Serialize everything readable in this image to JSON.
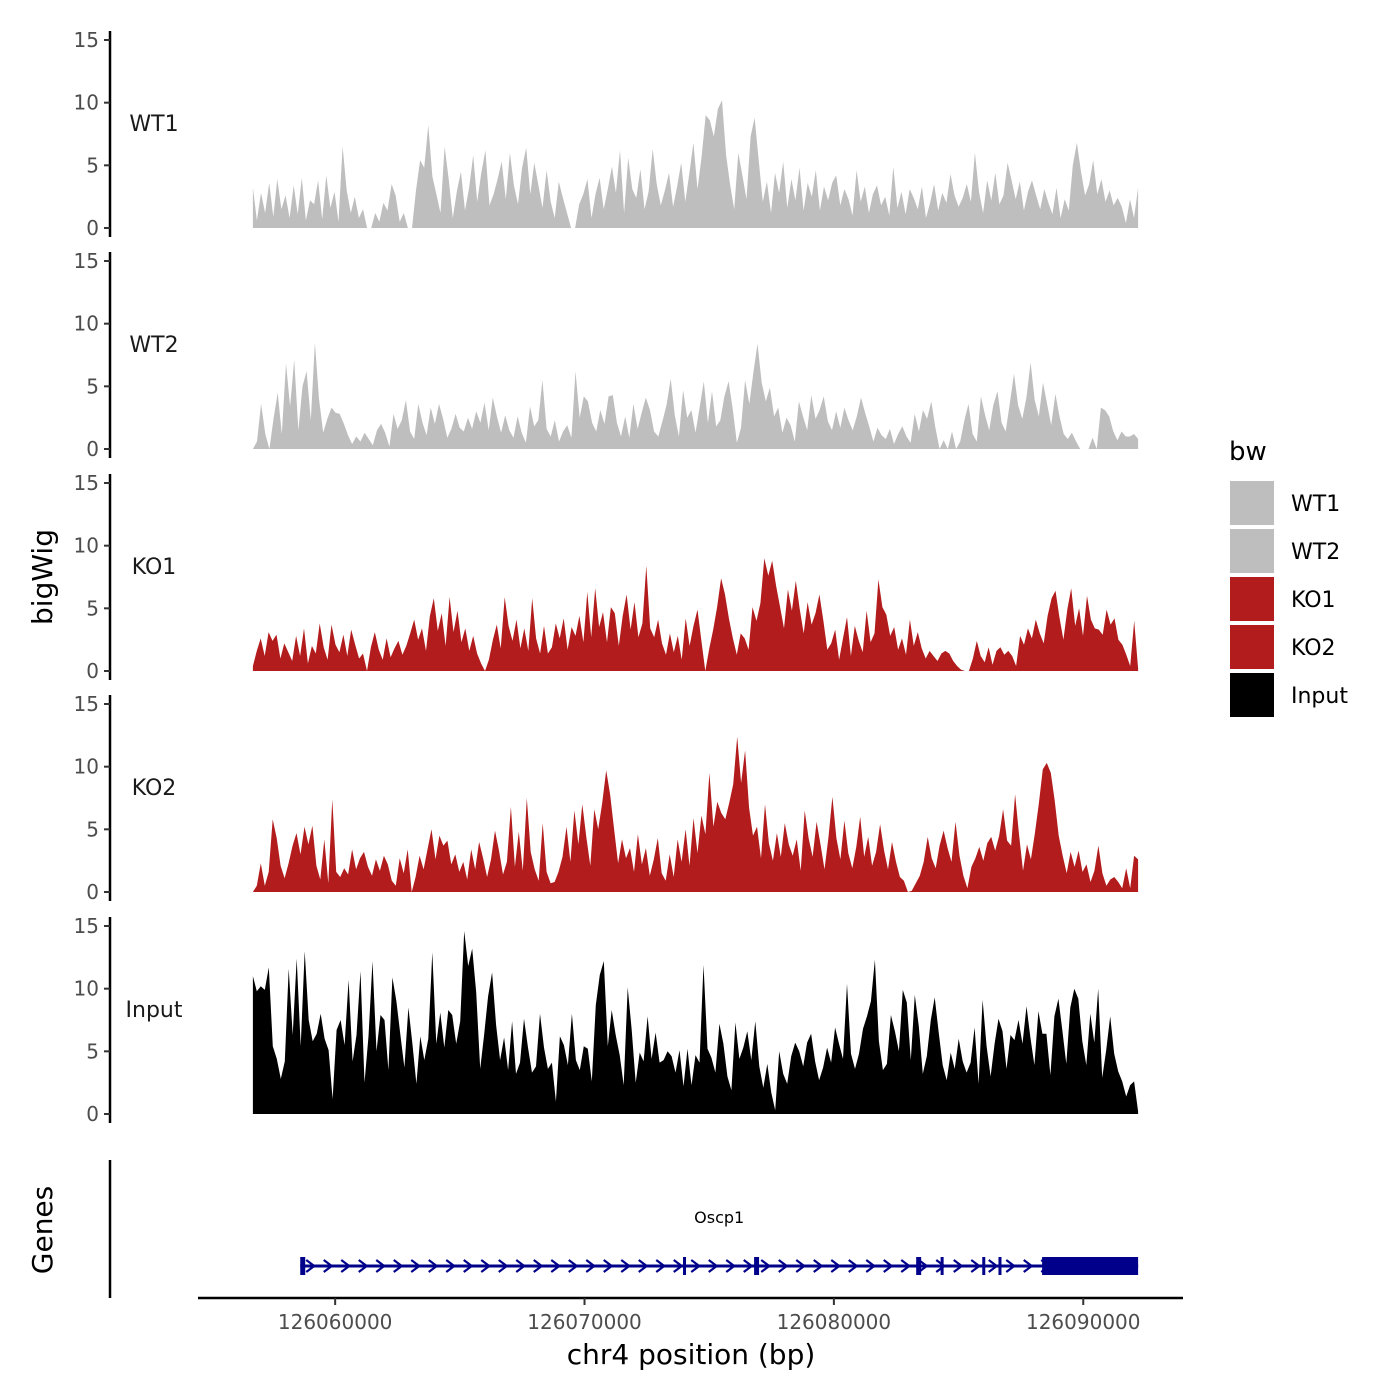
{
  "chart_data": {
    "type": "area",
    "region": {
      "chromosome": "chr4",
      "start": 126056700,
      "end": 126092200
    },
    "xlabel": "chr4 position (bp)",
    "ylabel": "bigWig",
    "xlim": [
      126054500,
      126094000
    ],
    "ylim": [
      0,
      15
    ],
    "x_ticks": [
      126060000,
      126070000,
      126080000,
      126090000
    ],
    "x_tick_labels": [
      "126060000",
      "126070000",
      "126080000",
      "126090000"
    ],
    "y_ticks": [
      0,
      5,
      10,
      15
    ],
    "y_tick_labels": [
      "0",
      "5",
      "10",
      "15"
    ],
    "legend": {
      "title": "bw",
      "position": "right",
      "entries": [
        {
          "label": "WT1",
          "color": "#bebebe"
        },
        {
          "label": "WT2",
          "color": "#bebebe"
        },
        {
          "label": "KO1",
          "color": "#b21c1c"
        },
        {
          "label": "KO2",
          "color": "#b21c1c"
        },
        {
          "label": "Input",
          "color": "#000000"
        }
      ]
    },
    "series": [
      {
        "name": "WT1",
        "color": "#bebebe",
        "x_start": 126056700,
        "x_end": 126092200,
        "values": [
          3.2,
          0.6,
          2.8,
          1.2,
          3.6,
          0.9,
          3.9,
          1.5,
          2.6,
          0.8,
          3.4,
          1.1,
          4.0,
          0.6,
          2.2,
          1.9,
          3.8,
          0.7,
          4.2,
          1.6,
          2.9,
          0.5,
          6.5,
          3.0,
          1.2,
          2.5,
          0.8,
          1.5,
          0,
          0,
          1.2,
          0.5,
          2.0,
          1.4,
          3.5,
          2.6,
          0.5,
          1.2,
          0,
          0,
          3.0,
          5.4,
          4.8,
          8.2,
          4.1,
          2.7,
          1.2,
          6.5,
          3.9,
          0.8,
          2.9,
          4.5,
          1.4,
          3.2,
          5.8,
          2.1,
          4.4,
          6.2,
          1.8,
          2.7,
          3.9,
          5.3,
          2.3,
          6.0,
          3.4,
          1.9,
          4.8,
          6.4,
          2.7,
          5.2,
          3.4,
          1.6,
          4.6,
          2.1,
          0.8,
          3.7,
          2.4,
          1.2,
          0,
          0,
          1.9,
          2.7,
          3.9,
          0.8,
          2.7,
          4.0,
          1.5,
          3.1,
          4.9,
          2.8,
          6.2,
          1.2,
          5.6,
          3.1,
          2.4,
          4.7,
          1.5,
          2.9,
          6.3,
          3.5,
          1.8,
          3.0,
          4.4,
          1.7,
          3.3,
          5.2,
          2.1,
          4.4,
          6.8,
          3.1,
          5.7,
          9.0,
          8.6,
          7.3,
          9.5,
          10.2,
          5.8,
          3.4,
          1.5,
          6.0,
          4.2,
          2.3,
          7.3,
          8.8,
          5.4,
          2.1,
          3.7,
          1.2,
          4.4,
          2.8,
          5.3,
          1.6,
          3.9,
          2.2,
          4.8,
          1.4,
          3.6,
          2.5,
          4.6,
          1.4,
          3.3,
          2.2,
          3.6,
          4.2,
          1.8,
          3.1,
          2.3,
          1.0,
          4.6,
          2.1,
          3.3,
          1.2,
          2.7,
          3.4,
          1.8,
          2.5,
          1.0,
          4.9,
          1.6,
          2.9,
          1.1,
          3.1,
          2.4,
          1.5,
          3.3,
          0.8,
          2.0,
          3.5,
          1.4,
          2.8,
          2.0,
          4.3,
          2.6,
          1.7,
          2.4,
          3.5,
          2.1,
          6.0,
          2.9,
          1.2,
          3.8,
          2.2,
          4.4,
          1.9,
          2.6,
          5.2,
          3.8,
          2.3,
          3.7,
          1.4,
          2.9,
          3.8,
          2.6,
          1.5,
          3.1,
          2.0,
          1.1,
          3.2,
          0.8,
          2.3,
          1.4,
          5.0,
          6.8,
          4.5,
          2.6,
          3.5,
          5.4,
          2.7,
          3.9,
          2.1,
          3.0,
          1.8,
          2.4,
          1.7,
          0.4,
          2.3,
          0.8,
          3.2
        ]
      },
      {
        "name": "WT2",
        "color": "#bebebe",
        "x_start": 126056700,
        "x_end": 126092200,
        "values": [
          0,
          0.6,
          3.6,
          1.2,
          0,
          2.4,
          4.5,
          1.2,
          6.8,
          3.4,
          7.1,
          1.5,
          5.0,
          6.2,
          2.3,
          8.5,
          4.0,
          1.3,
          2.4,
          3.3,
          2.9,
          2.8,
          2.0,
          1.1,
          0.4,
          1.0,
          0.6,
          1.3,
          0.8,
          0.3,
          1.5,
          2.0,
          1.3,
          0.2,
          2.8,
          1.6,
          2.3,
          3.9,
          1.4,
          0.8,
          3.6,
          2.1,
          1.1,
          3.3,
          2.0,
          3.6,
          2.4,
          0.9,
          1.6,
          2.8,
          1.7,
          1.4,
          2.5,
          1.6,
          3.0,
          2.1,
          3.7,
          1.5,
          4.1,
          2.6,
          1.3,
          2.7,
          1.5,
          0.9,
          2.6,
          1.3,
          0.5,
          3.4,
          1.8,
          2.3,
          5.5,
          1.6,
          1.0,
          2.3,
          0.6,
          1.4,
          1.9,
          0.9,
          6.2,
          2.5,
          4.2,
          3.8,
          2.1,
          1.4,
          3.1,
          2.0,
          4.2,
          4.3,
          2.1,
          1.0,
          2.6,
          0.9,
          3.6,
          1.6,
          2.9,
          4.1,
          3.1,
          1.4,
          1.0,
          2.2,
          3.5,
          5.6,
          2.7,
          1.0,
          4.7,
          2.5,
          3.1,
          1.3,
          3.3,
          5.4,
          2.1,
          4.6,
          1.8,
          2.3,
          4.2,
          5.4,
          3.2,
          0.5,
          1.7,
          5.5,
          3.6,
          6.1,
          8.4,
          5.3,
          3.8,
          4.9,
          2.6,
          3.3,
          1.3,
          2.5,
          1.9,
          0.6,
          3.8,
          2.6,
          1.5,
          4.3,
          2.4,
          3.1,
          4.2,
          2.2,
          1.5,
          3.0,
          1.7,
          3.3,
          2.3,
          1.5,
          2.6,
          4.1,
          2.9,
          1.8,
          0.6,
          1.7,
          1.1,
          0.8,
          1.6,
          0.4,
          1.2,
          1.8,
          1.0,
          0.5,
          2.8,
          1.4,
          3.1,
          2.4,
          3.8,
          1.7,
          0,
          0.7,
          0,
          1.4,
          0,
          0.6,
          2.3,
          3.6,
          1.2,
          0.6,
          4.2,
          2.7,
          1.5,
          3.5,
          4.6,
          2.1,
          1.4,
          3.7,
          6.0,
          3.5,
          2.4,
          4.1,
          6.9,
          3.9,
          2.6,
          5.3,
          3.6,
          1.9,
          4.4,
          2.6,
          1.2,
          0.8,
          1.3,
          0.6,
          0,
          0,
          0,
          0.9,
          0,
          3.3,
          3.1,
          2.6,
          1.4,
          0.7,
          1.4,
          1.0,
          1.0,
          1.2,
          0.8
        ]
      },
      {
        "name": "KO1",
        "color": "#b21c1c",
        "x_start": 126056700,
        "x_end": 126092200,
        "values": [
          0.4,
          1.6,
          2.6,
          1.2,
          3.1,
          2.4,
          2.9,
          1.0,
          2.2,
          1.5,
          0.8,
          2.8,
          1.2,
          3.4,
          0.6,
          2.0,
          1.4,
          3.8,
          1.9,
          0.9,
          3.7,
          2.1,
          1.5,
          2.9,
          1.2,
          3.3,
          2.1,
          1.0,
          1.4,
          0,
          1.9,
          3.1,
          1.7,
          0.9,
          2.6,
          1.1,
          1.8,
          2.4,
          1.3,
          2.0,
          3.0,
          4.1,
          2.5,
          3.4,
          1.6,
          4.4,
          5.8,
          3.2,
          4.6,
          2.0,
          5.9,
          3.1,
          4.8,
          2.3,
          3.4,
          1.6,
          2.8,
          1.4,
          0.6,
          0,
          0.9,
          2.5,
          3.7,
          1.8,
          5.9,
          3.6,
          2.4,
          4.1,
          1.8,
          3.4,
          1.6,
          5.8,
          2.6,
          1.4,
          3.6,
          1.4,
          1.9,
          3.8,
          2.6,
          4.2,
          1.7,
          3.5,
          2.8,
          4.4,
          2.3,
          6.3,
          2.7,
          6.6,
          3.5,
          4.7,
          2.3,
          5.1,
          4.6,
          2.0,
          4.4,
          6.1,
          3.3,
          5.5,
          2.7,
          3.8,
          8.4,
          3.4,
          2.7,
          4.1,
          2.2,
          1.3,
          3.0,
          1.5,
          2.8,
          0.9,
          4.2,
          2.0,
          3.6,
          4.9,
          2.4,
          0,
          1.8,
          3.3,
          5.1,
          7.4,
          6.1,
          4.2,
          2.6,
          1.3,
          3.0,
          2.6,
          1.7,
          5.1,
          4.0,
          5.4,
          9.0,
          7.6,
          8.8,
          6.8,
          5.1,
          3.4,
          6.5,
          4.8,
          7.2,
          4.9,
          3.0,
          5.5,
          3.7,
          4.6,
          6.1,
          4.0,
          1.7,
          2.2,
          3.3,
          0.9,
          2.6,
          4.3,
          1.2,
          3.6,
          2.4,
          1.5,
          4.8,
          2.3,
          3.0,
          7.3,
          5.1,
          4.5,
          2.8,
          3.5,
          1.7,
          2.6,
          1.3,
          4.1,
          2.0,
          3.1,
          1.8,
          1.0,
          1.6,
          1.2,
          0.8,
          1.4,
          1.6,
          1.4,
          0.8,
          0.4,
          0.1,
          0,
          0,
          1.0,
          2.4,
          1.2,
          0.7,
          1.9,
          0.5,
          1.6,
          1.9,
          1.3,
          1.6,
          1.2,
          0.4,
          2.8,
          2.1,
          3.4,
          2.6,
          4.1,
          3.0,
          2.2,
          4.4,
          5.8,
          6.4,
          4.3,
          2.5,
          4.9,
          6.6,
          3.6,
          5.0,
          2.8,
          6.0,
          4.1,
          3.4,
          3.3,
          2.9,
          4.9,
          3.7,
          4.2,
          2.5,
          2.1,
          1.3,
          0.4,
          4.0,
          0.2
        ]
      },
      {
        "name": "KO2",
        "color": "#b21c1c",
        "x_start": 126056700,
        "x_end": 126092200,
        "values": [
          0,
          0.5,
          2.3,
          0.5,
          1.6,
          5.8,
          4.3,
          2.1,
          1.1,
          2.3,
          3.7,
          4.7,
          3.0,
          5.2,
          3.8,
          5.3,
          2.1,
          1.0,
          4.2,
          0.7,
          7.4,
          1.6,
          1.2,
          1.9,
          1.4,
          3.4,
          1.8,
          2.7,
          3.2,
          2.0,
          1.3,
          2.6,
          1.7,
          2.9,
          2.2,
          0.9,
          0.5,
          2.7,
          1.5,
          3.4,
          0,
          1.2,
          2.9,
          1.8,
          3.4,
          5.0,
          2.6,
          4.5,
          3.7,
          4.1,
          2.2,
          3.0,
          1.6,
          2.4,
          1.0,
          3.4,
          1.8,
          4.0,
          2.7,
          1.2,
          2.6,
          4.9,
          3.3,
          1.4,
          2.4,
          6.8,
          2.0,
          4.8,
          1.7,
          7.5,
          3.2,
          1.8,
          0.9,
          5.5,
          1.6,
          0.7,
          0.8,
          1.6,
          2.8,
          5.2,
          2.4,
          6.5,
          3.8,
          7.0,
          4.4,
          2.1,
          6.6,
          5.0,
          7.1,
          9.7,
          7.8,
          5.0,
          2.3,
          4.2,
          2.7,
          3.5,
          1.6,
          4.6,
          2.2,
          3.5,
          1.3,
          2.6,
          4.3,
          1.5,
          0.9,
          3.0,
          1.2,
          4.2,
          2.4,
          5.0,
          2.1,
          5.9,
          3.1,
          6.1,
          4.6,
          9.5,
          5.2,
          7.2,
          6.3,
          5.8,
          7.1,
          8.6,
          12.4,
          8.7,
          11.3,
          6.7,
          4.5,
          5.2,
          2.7,
          7.0,
          3.9,
          2.5,
          4.7,
          2.8,
          5.5,
          3.8,
          2.9,
          4.2,
          1.7,
          6.5,
          4.3,
          2.8,
          5.6,
          3.8,
          1.8,
          4.4,
          7.6,
          4.3,
          2.6,
          5.7,
          3.1,
          1.9,
          3.6,
          6.0,
          2.8,
          4.4,
          2.1,
          3.2,
          5.4,
          3.3,
          1.8,
          4.0,
          2.4,
          1.2,
          0.9,
          0,
          0.1,
          0.7,
          1.3,
          2.4,
          4.4,
          2.7,
          1.9,
          3.7,
          4.9,
          3.5,
          2.4,
          5.6,
          2.9,
          1.3,
          0.3,
          2.0,
          2.7,
          3.6,
          2.5,
          3.9,
          4.4,
          3.3,
          4.5,
          6.6,
          4.1,
          3.7,
          7.8,
          4.6,
          1.7,
          3.8,
          2.6,
          4.7,
          7.1,
          9.8,
          10.3,
          9.5,
          7.3,
          4.5,
          2.9,
          1.5,
          3.2,
          2.0,
          3.3,
          1.6,
          2.2,
          0.8,
          1.7,
          3.7,
          1.5,
          0.5,
          1.0,
          1.2,
          0.8,
          0.3,
          1.9,
          0.3,
          2.9,
          2.6
        ]
      },
      {
        "name": "Input",
        "color": "#000000",
        "x_start": 126056700,
        "x_end": 126092200,
        "values": [
          11.0,
          9.8,
          10.2,
          9.9,
          11.7,
          5.4,
          4.4,
          2.8,
          4.2,
          11.6,
          6.3,
          12.4,
          5.4,
          13.0,
          7.5,
          5.8,
          6.4,
          8.0,
          6.0,
          5.1,
          1.2,
          6.7,
          7.5,
          5.5,
          10.7,
          4.2,
          6.3,
          11.4,
          2.5,
          6.2,
          12.2,
          5.0,
          7.9,
          7.5,
          3.5,
          10.9,
          9.0,
          6.3,
          3.7,
          8.5,
          5.6,
          2.4,
          6.2,
          4.3,
          6.0,
          12.9,
          5.6,
          8.1,
          5.3,
          8.3,
          7.9,
          5.6,
          7.4,
          14.6,
          11.8,
          13.2,
          9.7,
          3.6,
          6.3,
          9.4,
          11.3,
          7.1,
          4.3,
          6.1,
          3.5,
          7.4,
          3.2,
          4.1,
          7.6,
          5.3,
          3.3,
          3.8,
          8.0,
          5.3,
          3.6,
          4.1,
          1.0,
          6.2,
          5.5,
          3.9,
          8.0,
          4.3,
          3.5,
          5.4,
          5.2,
          2.6,
          8.7,
          11.1,
          12.2,
          5.4,
          8.3,
          6.3,
          4.7,
          2.3,
          10.1,
          6.7,
          2.5,
          4.9,
          4.2,
          7.8,
          4.4,
          6.5,
          4.1,
          4.3,
          5.0,
          4.6,
          3.3,
          5.1,
          2.2,
          5.2,
          2.3,
          4.7,
          4.1,
          11.9,
          5.2,
          4.5,
          3.3,
          7.2,
          5.6,
          3.0,
          1.9,
          7.3,
          4.4,
          5.3,
          6.6,
          4.3,
          7.4,
          3.8,
          2.1,
          4.0,
          1.7,
          0.3,
          5.0,
          3.2,
          2.4,
          4.6,
          5.7,
          5.0,
          3.8,
          5.7,
          6.4,
          4.2,
          2.7,
          3.7,
          5.3,
          4.1,
          6.9,
          5.6,
          4.4,
          10.4,
          4.8,
          3.6,
          4.8,
          6.8,
          7.8,
          9.0,
          12.3,
          5.8,
          3.5,
          4.0,
          7.9,
          6.6,
          5.0,
          9.9,
          8.9,
          4.3,
          9.5,
          7.0,
          3.2,
          4.6,
          7.5,
          9.3,
          6.5,
          3.9,
          2.7,
          4.9,
          3.6,
          6.0,
          4.2,
          3.3,
          4.1,
          6.9,
          2.4,
          9.1,
          5.4,
          3.0,
          5.6,
          7.6,
          6.6,
          3.6,
          6.3,
          5.9,
          7.5,
          5.6,
          8.6,
          6.1,
          3.9,
          8.2,
          6.4,
          6.4,
          3.1,
          7.8,
          9.2,
          6.7,
          4.0,
          8.5,
          10.0,
          9.2,
          5.8,
          3.9,
          8.0,
          5.7,
          10.0,
          2.9,
          5.1,
          7.8,
          4.8,
          3.4,
          2.6,
          1.4,
          2.3,
          2.6,
          0.2
        ]
      }
    ],
    "genes": {
      "label": "Genes",
      "items": [
        {
          "name": "Oscp1",
          "start": 126058600,
          "end": 126092200,
          "strand": "+",
          "exons": [
            {
              "start": 126058600,
              "end": 126058800
            },
            {
              "start": 126073950,
              "end": 126074050
            },
            {
              "start": 126076800,
              "end": 126077000
            },
            {
              "start": 126083300,
              "end": 126083500
            },
            {
              "start": 126084280,
              "end": 126084380
            },
            {
              "start": 126085950,
              "end": 126086050
            },
            {
              "start": 126086600,
              "end": 126086700
            },
            {
              "start": 126088350,
              "end": 126092200
            }
          ]
        }
      ]
    }
  }
}
